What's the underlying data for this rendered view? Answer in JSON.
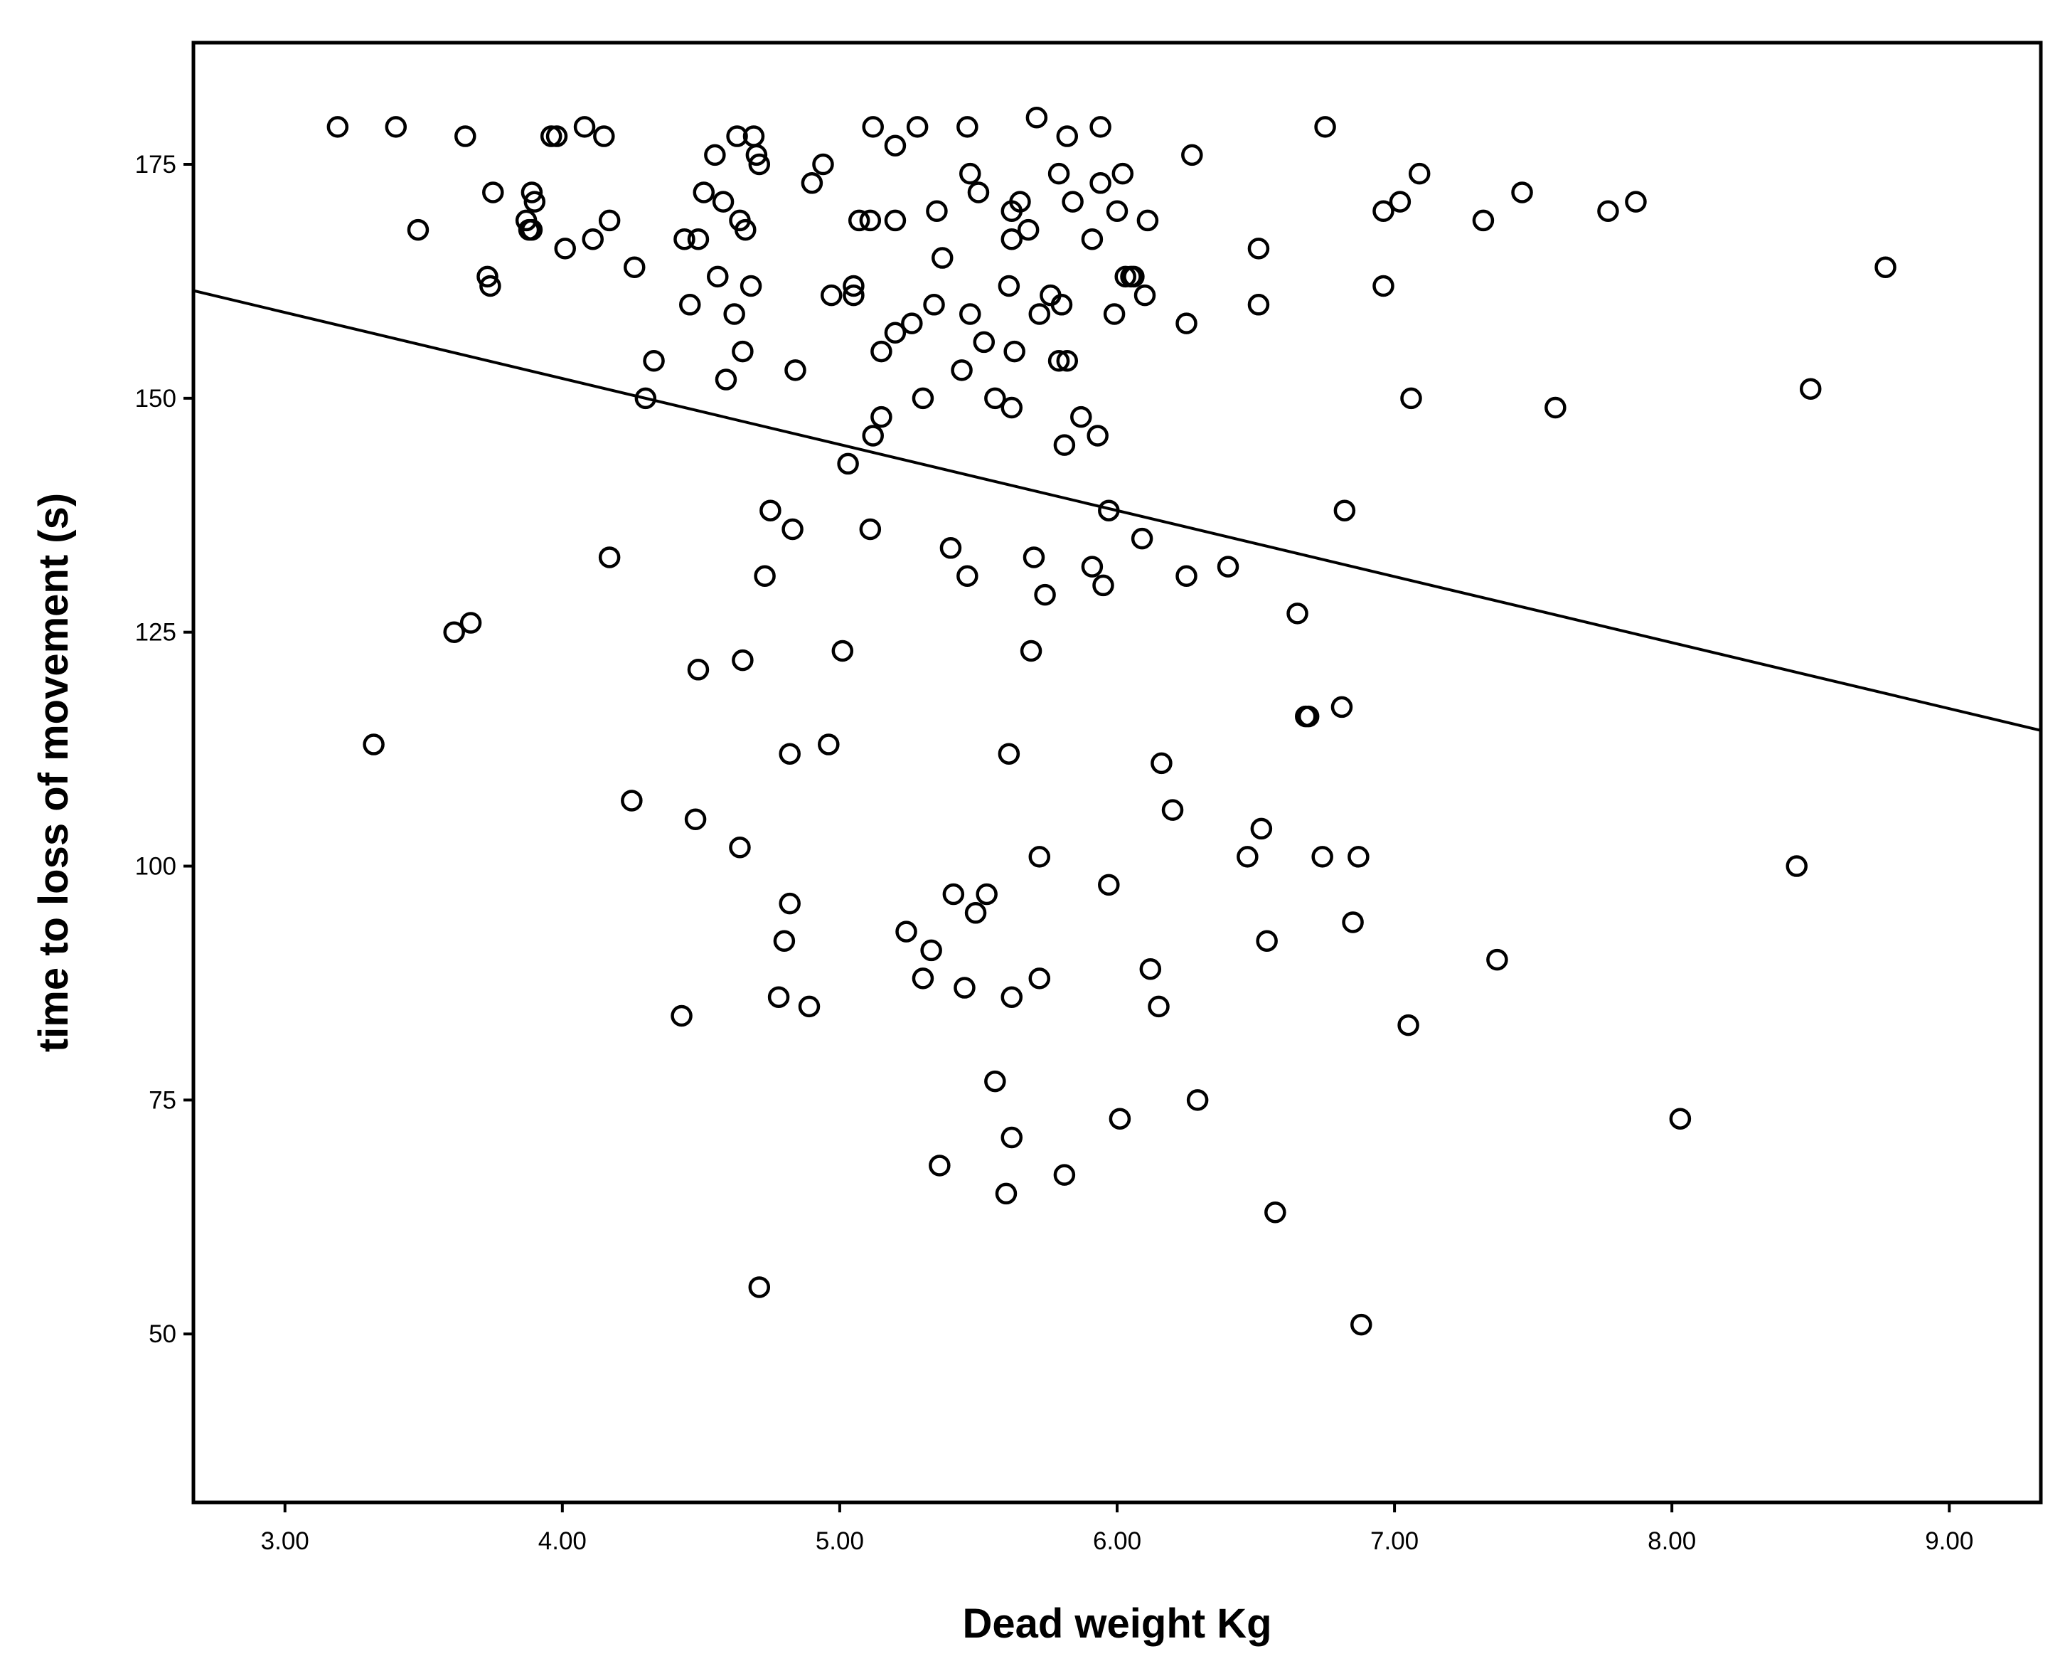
{
  "chart_data": {
    "type": "scatter",
    "title": "",
    "xlabel": "Dead weight Kg",
    "ylabel": "time to loss of movement (s)",
    "xlim": [
      2.67,
      9.33
    ],
    "ylim": [
      32,
      188
    ],
    "x_ticks": [
      3,
      4,
      5,
      6,
      7,
      8,
      9
    ],
    "x_tick_labels": [
      "3.00",
      "4.00",
      "5.00",
      "6.00",
      "7.00",
      "8.00",
      "9.00"
    ],
    "y_ticks": [
      50,
      75,
      100,
      125,
      150,
      175
    ],
    "y_tick_labels": [
      "50",
      "75",
      "100",
      "125",
      "150",
      "175"
    ],
    "grid": false,
    "legend": "none",
    "colors": {
      "marker": "#000000",
      "line": "#000000",
      "background": "#ffffff"
    },
    "fit_line": {
      "name": "linear fit",
      "x": [
        2.67,
        9.33
      ],
      "y": [
        161.5,
        114.5
      ]
    },
    "series": [
      {
        "name": "observations",
        "marker": "open-circle",
        "points": [
          [
            3.19,
            179
          ],
          [
            3.4,
            179
          ],
          [
            3.65,
            178
          ],
          [
            3.48,
            168
          ],
          [
            3.73,
            163
          ],
          [
            3.74,
            162
          ],
          [
            3.75,
            172
          ],
          [
            3.87,
            169
          ],
          [
            3.88,
            168
          ],
          [
            3.89,
            172
          ],
          [
            3.9,
            171
          ],
          [
            3.89,
            168
          ],
          [
            3.96,
            178
          ],
          [
            3.98,
            178
          ],
          [
            4.08,
            179
          ],
          [
            4.15,
            178
          ],
          [
            4.01,
            166
          ],
          [
            4.11,
            167
          ],
          [
            4.17,
            169
          ],
          [
            4.26,
            164
          ],
          [
            4.3,
            150
          ],
          [
            4.33,
            154
          ],
          [
            4.44,
            167
          ],
          [
            4.46,
            160
          ],
          [
            4.49,
            167
          ],
          [
            4.51,
            172
          ],
          [
            4.55,
            176
          ],
          [
            4.56,
            163
          ],
          [
            4.58,
            171
          ],
          [
            4.59,
            152
          ],
          [
            4.62,
            159
          ],
          [
            4.63,
            178
          ],
          [
            4.64,
            169
          ],
          [
            4.65,
            155
          ],
          [
            4.66,
            168
          ],
          [
            4.68,
            162
          ],
          [
            4.69,
            178
          ],
          [
            4.7,
            176
          ],
          [
            4.71,
            175
          ],
          [
            4.84,
            153
          ],
          [
            4.9,
            173
          ],
          [
            4.94,
            175
          ],
          [
            4.97,
            161
          ],
          [
            5.05,
            162
          ],
          [
            5.05,
            161
          ],
          [
            5.07,
            169
          ],
          [
            5.11,
            169
          ],
          [
            5.12,
            179
          ],
          [
            5.12,
            146
          ],
          [
            5.15,
            155
          ],
          [
            5.15,
            148
          ],
          [
            5.2,
            169
          ],
          [
            5.2,
            177
          ],
          [
            5.2,
            157
          ],
          [
            5.26,
            158
          ],
          [
            5.28,
            179
          ],
          [
            5.3,
            150
          ],
          [
            5.34,
            160
          ],
          [
            5.35,
            170
          ],
          [
            5.37,
            165
          ],
          [
            5.44,
            153
          ],
          [
            5.46,
            179
          ],
          [
            5.47,
            174
          ],
          [
            5.47,
            159
          ],
          [
            5.5,
            172
          ],
          [
            5.52,
            156
          ],
          [
            5.56,
            150
          ],
          [
            5.61,
            162
          ],
          [
            5.62,
            149
          ],
          [
            5.62,
            167
          ],
          [
            5.62,
            170
          ],
          [
            5.63,
            155
          ],
          [
            5.65,
            171
          ],
          [
            5.68,
            168
          ],
          [
            5.71,
            180
          ],
          [
            5.72,
            159
          ],
          [
            5.76,
            161
          ],
          [
            5.79,
            174
          ],
          [
            5.79,
            154
          ],
          [
            5.8,
            160
          ],
          [
            5.82,
            154
          ],
          [
            5.82,
            178
          ],
          [
            5.84,
            171
          ],
          [
            5.87,
            148
          ],
          [
            5.91,
            167
          ],
          [
            5.93,
            146
          ],
          [
            5.94,
            173
          ],
          [
            5.94,
            179
          ],
          [
            5.99,
            159
          ],
          [
            6.0,
            170
          ],
          [
            6.02,
            174
          ],
          [
            6.03,
            163
          ],
          [
            6.05,
            163
          ],
          [
            6.06,
            163
          ],
          [
            6.1,
            161
          ],
          [
            6.11,
            169
          ],
          [
            6.25,
            158
          ],
          [
            6.27,
            176
          ],
          [
            6.51,
            166
          ],
          [
            6.51,
            160
          ],
          [
            6.75,
            179
          ],
          [
            6.96,
            170
          ],
          [
            6.96,
            162
          ],
          [
            7.02,
            171
          ],
          [
            7.06,
            150
          ],
          [
            7.09,
            174
          ],
          [
            7.32,
            169
          ],
          [
            7.46,
            172
          ],
          [
            7.58,
            149
          ],
          [
            7.77,
            170
          ],
          [
            7.87,
            171
          ],
          [
            8.5,
            151
          ],
          [
            8.77,
            164
          ],
          [
            3.32,
            113
          ],
          [
            3.61,
            125
          ],
          [
            3.67,
            126
          ],
          [
            4.17,
            133
          ],
          [
            4.25,
            107
          ],
          [
            4.43,
            84
          ],
          [
            4.48,
            105
          ],
          [
            4.49,
            121
          ],
          [
            4.64,
            102
          ],
          [
            4.65,
            122
          ],
          [
            4.71,
            55
          ],
          [
            4.73,
            131
          ],
          [
            4.75,
            138
          ],
          [
            4.78,
            86
          ],
          [
            4.8,
            92
          ],
          [
            4.82,
            112
          ],
          [
            4.82,
            96
          ],
          [
            4.83,
            136
          ],
          [
            4.89,
            85
          ],
          [
            4.96,
            113
          ],
          [
            5.01,
            123
          ],
          [
            5.03,
            143
          ],
          [
            5.11,
            136
          ],
          [
            5.24,
            93
          ],
          [
            5.3,
            88
          ],
          [
            5.33,
            91
          ],
          [
            5.36,
            68
          ],
          [
            5.4,
            134
          ],
          [
            5.41,
            97
          ],
          [
            5.46,
            131
          ],
          [
            5.45,
            87
          ],
          [
            5.49,
            95
          ],
          [
            5.53,
            97
          ],
          [
            5.56,
            77
          ],
          [
            5.6,
            65
          ],
          [
            5.61,
            112
          ],
          [
            5.62,
            86
          ],
          [
            5.62,
            71
          ],
          [
            5.69,
            123
          ],
          [
            5.7,
            133
          ],
          [
            5.72,
            101
          ],
          [
            5.72,
            88
          ],
          [
            5.74,
            129
          ],
          [
            5.81,
            145
          ],
          [
            5.81,
            67
          ],
          [
            5.91,
            132
          ],
          [
            5.95,
            130
          ],
          [
            5.97,
            98
          ],
          [
            5.97,
            138
          ],
          [
            6.01,
            73
          ],
          [
            6.09,
            135
          ],
          [
            6.12,
            89
          ],
          [
            6.15,
            85
          ],
          [
            6.16,
            111
          ],
          [
            6.2,
            106
          ],
          [
            6.25,
            131
          ],
          [
            6.29,
            75
          ],
          [
            6.4,
            132
          ],
          [
            6.47,
            101
          ],
          [
            6.52,
            104
          ],
          [
            6.54,
            92
          ],
          [
            6.57,
            63
          ],
          [
            6.65,
            127
          ],
          [
            6.68,
            116
          ],
          [
            6.69,
            116
          ],
          [
            6.74,
            101
          ],
          [
            6.81,
            117
          ],
          [
            6.82,
            138
          ],
          [
            6.85,
            94
          ],
          [
            6.87,
            101
          ],
          [
            6.88,
            51
          ],
          [
            7.05,
            83
          ],
          [
            7.37,
            90
          ],
          [
            8.03,
            73
          ],
          [
            8.45,
            100
          ]
        ]
      }
    ]
  }
}
